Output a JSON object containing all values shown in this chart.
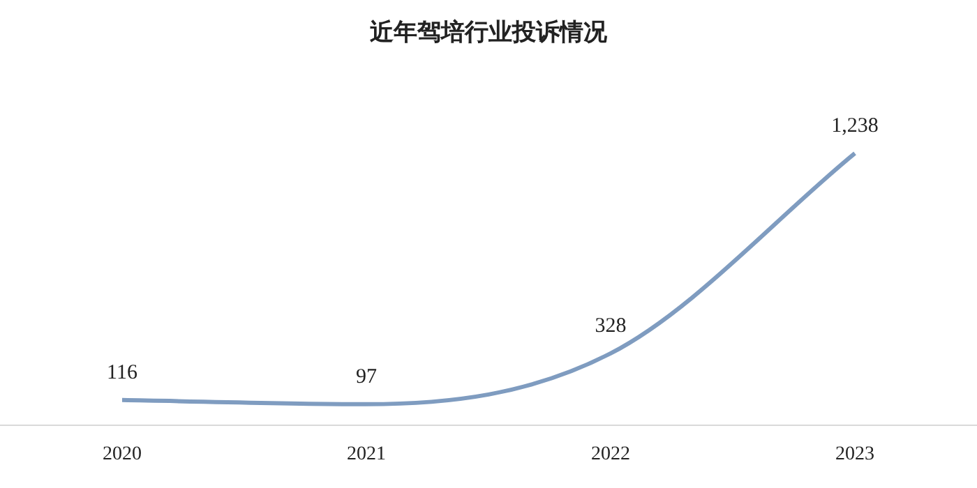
{
  "chart_data": {
    "type": "line",
    "title": "近年驾培行业投诉情况",
    "categories": [
      "2020",
      "2021",
      "2022",
      "2023"
    ],
    "values": [
      116,
      97,
      328,
      1238
    ],
    "value_labels": [
      "116",
      "97",
      "328",
      "1,238"
    ],
    "color": "#7f9cc0",
    "grid": false,
    "legend": false,
    "marker": "none"
  }
}
